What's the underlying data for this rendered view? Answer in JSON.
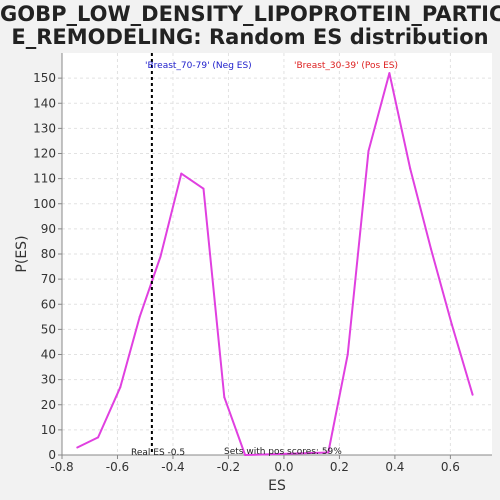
{
  "title_line1": "GOBP_LOW_DENSITY_LIPOPROTEIN_PARTICL",
  "title_line2": "E_REMODELING: Random ES distribution",
  "chart_data": {
    "type": "line",
    "title": "GOBP_LOW_DENSITY_LIPOPROTEIN_PARTICLE_REMODELING: Random ES distribution",
    "xlabel": "ES",
    "ylabel": "P(ES)",
    "xlim": [
      -0.8,
      0.75
    ],
    "ylim": [
      0,
      160
    ],
    "xticks": [
      -0.8,
      -0.6,
      -0.4,
      -0.2,
      0.0,
      0.2,
      0.4,
      0.6
    ],
    "xtick_labels": [
      "-0.8",
      "-0.6",
      "-0.4",
      "-0.2",
      "0.0",
      "0.2",
      "0.4",
      "0.6"
    ],
    "yticks": [
      0,
      10,
      20,
      30,
      40,
      50,
      60,
      70,
      80,
      90,
      100,
      110,
      120,
      130,
      140,
      150
    ],
    "grid": true,
    "series": [
      {
        "color": "#e040e0",
        "x": [
          -0.745,
          -0.67,
          -0.59,
          -0.52,
          -0.445,
          -0.37,
          -0.29,
          -0.215,
          -0.14,
          0.16,
          0.23,
          0.305,
          0.38,
          0.455,
          0.53,
          0.605,
          0.68
        ],
        "y": [
          3,
          7,
          27,
          55,
          79,
          112,
          106,
          23,
          0,
          1,
          40,
          121,
          152,
          114,
          82,
          52,
          24
        ]
      }
    ],
    "real_es": -0.476,
    "real_es_label": "Real ES -0.5",
    "pos_scores_label": "Sets with pos scores: 59%",
    "neg_label": "'Breast_70-79' (Neg ES)",
    "pos_label": "'Breast_30-39' (Pos ES)",
    "neg_label_color": "#2020cc",
    "pos_label_color": "#dd2020"
  }
}
